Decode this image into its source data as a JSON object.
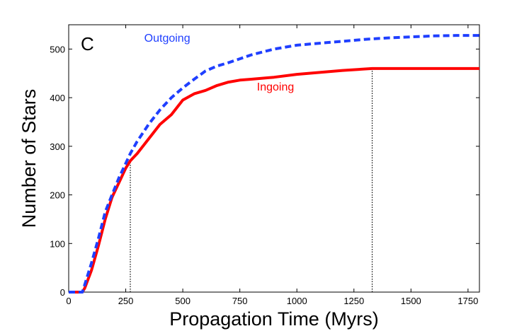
{
  "chart_data": {
    "type": "line",
    "panel_letter": "C",
    "xlabel": "Propagation Time (Myrs)",
    "ylabel": "Number of Stars",
    "xlim": [
      0,
      1800
    ],
    "ylim": [
      0,
      550
    ],
    "xticks": [
      0,
      250,
      500,
      750,
      1000,
      1250,
      1500,
      1750
    ],
    "yticks": [
      0,
      100,
      200,
      300,
      400,
      500
    ],
    "grid": false,
    "series": [
      {
        "name": "Outgoing",
        "color": "#1f3fff",
        "style": "dashed",
        "x": [
          0,
          60,
          70,
          100,
          130,
          160,
          190,
          220,
          250,
          270,
          300,
          350,
          400,
          450,
          500,
          550,
          600,
          650,
          700,
          750,
          800,
          900,
          1000,
          1100,
          1200,
          1300,
          1400,
          1500,
          1600,
          1700,
          1800
        ],
        "y": [
          0,
          0,
          15,
          60,
          110,
          165,
          200,
          235,
          265,
          285,
          310,
          345,
          375,
          400,
          420,
          438,
          455,
          465,
          472,
          480,
          488,
          500,
          508,
          512,
          516,
          520,
          523,
          525,
          527,
          528,
          528
        ]
      },
      {
        "name": "Ingoing",
        "color": "#ff0000",
        "style": "solid",
        "x": [
          0,
          60,
          70,
          100,
          130,
          160,
          190,
          220,
          250,
          270,
          300,
          350,
          400,
          450,
          500,
          550,
          600,
          650,
          700,
          750,
          800,
          900,
          1000,
          1100,
          1200,
          1330,
          1400,
          1500,
          1600,
          1700,
          1800
        ],
        "y": [
          0,
          0,
          8,
          45,
          95,
          150,
          195,
          225,
          255,
          270,
          285,
          315,
          345,
          365,
          395,
          408,
          415,
          425,
          432,
          436,
          438,
          442,
          448,
          452,
          456,
          460,
          460,
          460,
          460,
          460,
          460
        ]
      }
    ],
    "vlines": [
      {
        "x": 270,
        "y": 270,
        "style": "dotted"
      },
      {
        "x": 1330,
        "y": 460,
        "style": "dotted"
      }
    ],
    "annotations": [
      {
        "text": "Outgoing",
        "x": 480,
        "y": 515,
        "color": "#1f3fff"
      },
      {
        "text": "Ingoing",
        "x": 980,
        "y": 415,
        "color": "#ff0000"
      }
    ]
  }
}
